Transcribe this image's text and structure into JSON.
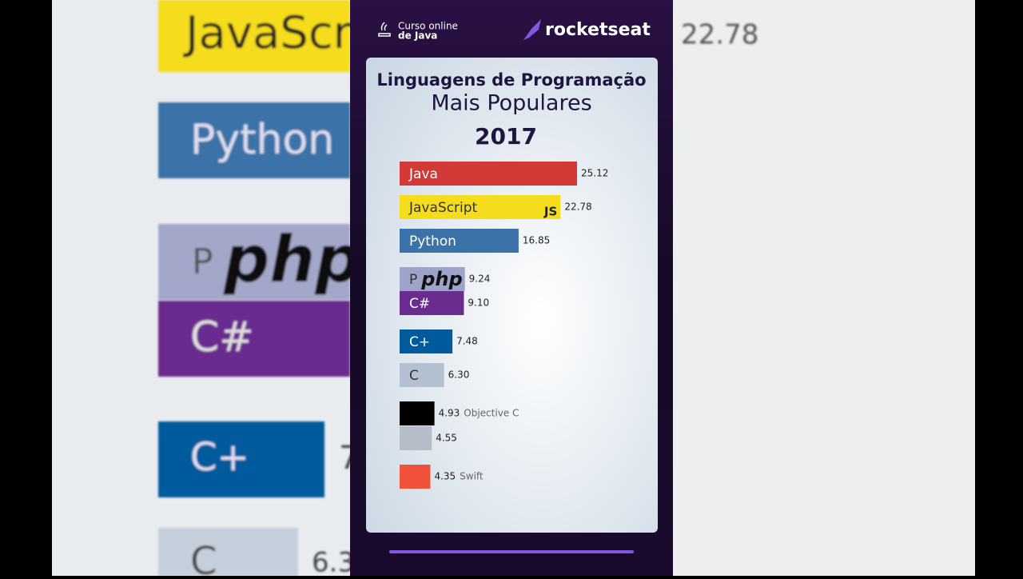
{
  "header": {
    "course_line1": "Curso online",
    "course_line2": "de Java",
    "brand": "rocketseat"
  },
  "background_texts": [
    "JavaScri",
    "22.78",
    "Python",
    "P",
    "php",
    "C#",
    "C+",
    "7",
    "C",
    "6.3"
  ],
  "logos": {
    "javascript": "JS",
    "php": "php"
  },
  "chart_data": {
    "type": "bar",
    "orientation": "horizontal",
    "title": "Linguagens de Programação",
    "subtitle": "Mais Populares",
    "annotation": "2017",
    "categories": [
      "Java",
      "JavaScript",
      "Python",
      "P",
      "C#",
      "C+",
      "C",
      "Objective C",
      null,
      "Swift"
    ],
    "values": [
      25.12,
      22.78,
      16.85,
      9.24,
      9.1,
      7.48,
      6.3,
      4.93,
      4.55,
      4.35
    ],
    "value_labels": [
      "25.12",
      "22.78",
      "16.85",
      "9.24",
      "9.10",
      "7.48",
      "6.30",
      "4.93",
      "4.55",
      "4.35"
    ],
    "colors": [
      "#d13a36",
      "#f5dc1c",
      "#3b73a8",
      "#9ea3c9",
      "#6a2c8f",
      "#005a9c",
      "#b2c0d2",
      "#000000",
      "#b6bcc8",
      "#f05138"
    ]
  }
}
